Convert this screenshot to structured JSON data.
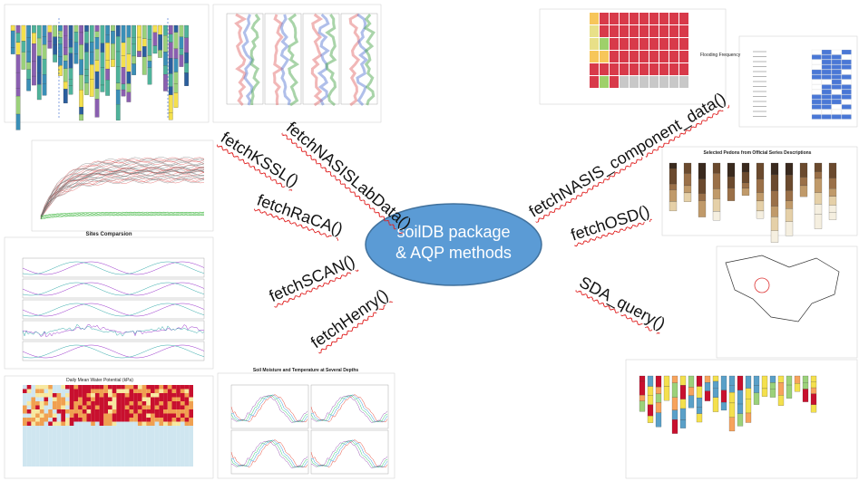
{
  "center": {
    "lines": [
      "soilDB package",
      "& AQP methods"
    ]
  },
  "functions": [
    "fetchKSSL()",
    "fetchNASISLabData()",
    "fetchRaCA()",
    "fetchSCAN()",
    "fetchHenry()",
    "fetchNASIS_component_data()",
    "fetchOSD()",
    "SDA_query()"
  ],
  "thumbnails": {
    "sites": "Sites Comparsion",
    "osd": "Selected Pedons from Official Series Descriptions",
    "soil_moisture": "Soil Moisture and Temperature at Several Depths",
    "water_potential": "Daily Mean Water Potential (kPa)",
    "flooding": "Flooding Frequency"
  }
}
